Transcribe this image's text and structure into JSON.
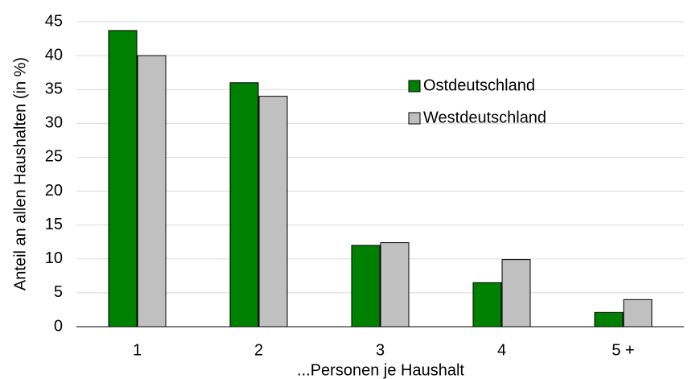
{
  "chart_data": {
    "type": "bar",
    "categories": [
      "1",
      "2",
      "3",
      "4",
      "5 +"
    ],
    "series": [
      {
        "name": "Ostdeutschland",
        "color": "#008000",
        "values": [
          43.7,
          36,
          12,
          6.5,
          2.1
        ]
      },
      {
        "name": "Westdeutschland",
        "color": "#c0c0c0",
        "values": [
          40,
          34,
          12.4,
          9.9,
          4
        ]
      }
    ],
    "xlabel": "...Personen je Haushalt",
    "ylabel": "Anteil an allen Haushalten (in %)",
    "ylim": [
      0,
      45
    ],
    "yticks": [
      0,
      5,
      10,
      15,
      20,
      25,
      30,
      35,
      40,
      45
    ],
    "grid": true,
    "legend": "center"
  }
}
